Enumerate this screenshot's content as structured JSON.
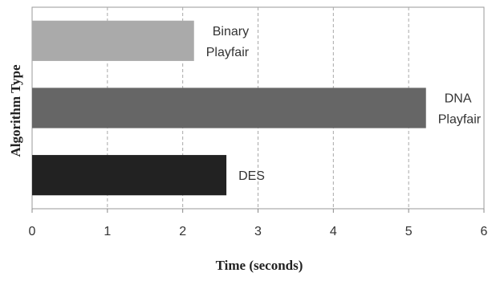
{
  "chart_data": {
    "type": "bar",
    "orientation": "horizontal",
    "title": "",
    "xlabel": "Time (seconds)",
    "ylabel": "Algorithm Type",
    "xlim": [
      0,
      6
    ],
    "x_ticks": [
      "0",
      "1",
      "2",
      "3",
      "4",
      "5",
      "6"
    ],
    "grid": "vertical, dashed",
    "legend": "none",
    "bars": [
      {
        "label_lines": [
          "Binary",
          "Playfair"
        ],
        "value": 2.15,
        "color": "#aaaaaa"
      },
      {
        "label_lines": [
          "DNA",
          "Playfair"
        ],
        "value": 5.23,
        "color": "#666666"
      },
      {
        "label_lines": [
          "DES"
        ],
        "value": 2.58,
        "color": "#222222"
      }
    ]
  }
}
